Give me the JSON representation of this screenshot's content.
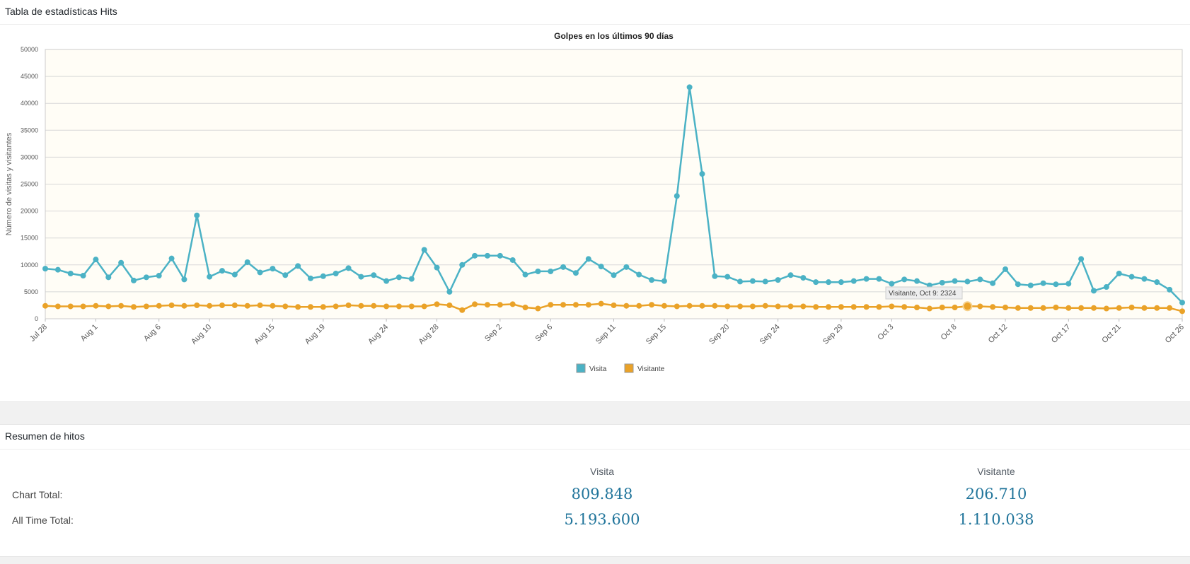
{
  "chart_panel": {
    "title": "Tabla de estadísticas Hits"
  },
  "summary_panel": {
    "title": "Resumen de hitos",
    "col_headers": [
      "Visita",
      "Visitante"
    ],
    "rows": [
      {
        "label": "Chart Total:",
        "visita": "809.848",
        "visitante": "206.710"
      },
      {
        "label": "All Time Total:",
        "visita": "5.193.600",
        "visitante": "1.110.038"
      }
    ]
  },
  "chart_data": {
    "type": "line",
    "title": "Golpes en los últimos 90 días",
    "xlabel": "",
    "ylabel": "Número de visitas y visitantes",
    "ylim": [
      0,
      50000
    ],
    "yticks": [
      0,
      5000,
      10000,
      15000,
      20000,
      25000,
      30000,
      35000,
      40000,
      45000,
      50000
    ],
    "x_start": "Jul 28",
    "x_end": "Oct 26",
    "x_ticks": [
      {
        "label": "Jul 28",
        "i": 0
      },
      {
        "label": "Aug 1",
        "i": 4
      },
      {
        "label": "Aug 6",
        "i": 9
      },
      {
        "label": "Aug 10",
        "i": 13
      },
      {
        "label": "Aug 15",
        "i": 18
      },
      {
        "label": "Aug 19",
        "i": 22
      },
      {
        "label": "Aug 24",
        "i": 27
      },
      {
        "label": "Aug 28",
        "i": 31
      },
      {
        "label": "Sep 2",
        "i": 36
      },
      {
        "label": "Sep 6",
        "i": 40
      },
      {
        "label": "Sep 11",
        "i": 45
      },
      {
        "label": "Sep 15",
        "i": 49
      },
      {
        "label": "Sep 20",
        "i": 54
      },
      {
        "label": "Sep 24",
        "i": 58
      },
      {
        "label": "Sep 29",
        "i": 63
      },
      {
        "label": "Oct 3",
        "i": 67
      },
      {
        "label": "Oct 8",
        "i": 72
      },
      {
        "label": "Oct 12",
        "i": 76
      },
      {
        "label": "Oct 17",
        "i": 81
      },
      {
        "label": "Oct 21",
        "i": 85
      },
      {
        "label": "Oct 26",
        "i": 90
      }
    ],
    "grid": true,
    "legend": "bottom-center",
    "tooltip": {
      "text": "Visitante, Oct 9: 2324",
      "series": 1,
      "i": 73
    },
    "series": [
      {
        "name": "Visita",
        "color": "#4bb2c5",
        "values": [
          9300,
          9100,
          8400,
          8000,
          11000,
          7700,
          10400,
          7100,
          7700,
          8000,
          11200,
          7300,
          19200,
          7800,
          8900,
          8200,
          10500,
          8600,
          9300,
          8100,
          9800,
          7500,
          7900,
          8400,
          9400,
          7800,
          8100,
          7000,
          7700,
          7400,
          12800,
          9500,
          5000,
          10000,
          11700,
          11700,
          11700,
          10900,
          8200,
          8800,
          8800,
          9600,
          8500,
          11100,
          9700,
          8100,
          9600,
          8200,
          7200,
          7000,
          22800,
          43000,
          26900,
          7900,
          7800,
          6900,
          7000,
          6900,
          7200,
          8100,
          7600,
          6800,
          6800,
          6800,
          7000,
          7400,
          7400,
          6500,
          7300,
          7000,
          6200,
          6700,
          7000,
          6900,
          7300,
          6600,
          9200,
          6400,
          6200,
          6600,
          6400,
          6500,
          11100,
          5200,
          5900,
          8400,
          7800,
          7400,
          6800,
          5400,
          3000
        ]
      },
      {
        "name": "Visitante",
        "color": "#eaa228",
        "values": [
          2400,
          2300,
          2300,
          2300,
          2400,
          2300,
          2400,
          2200,
          2300,
          2400,
          2500,
          2400,
          2500,
          2400,
          2500,
          2500,
          2400,
          2500,
          2400,
          2300,
          2200,
          2200,
          2200,
          2300,
          2500,
          2400,
          2400,
          2300,
          2300,
          2300,
          2300,
          2700,
          2500,
          1600,
          2700,
          2600,
          2600,
          2700,
          2100,
          1900,
          2600,
          2600,
          2600,
          2600,
          2800,
          2500,
          2400,
          2400,
          2600,
          2400,
          2300,
          2400,
          2400,
          2400,
          2300,
          2300,
          2300,
          2400,
          2300,
          2300,
          2300,
          2200,
          2200,
          2200,
          2200,
          2200,
          2200,
          2300,
          2200,
          2100,
          1900,
          2100,
          2100,
          2324,
          2300,
          2200,
          2100,
          2000,
          2000,
          2000,
          2100,
          2000,
          2000,
          2000,
          1900,
          2000,
          2100,
          2000,
          2000,
          2000,
          1400
        ]
      }
    ]
  }
}
